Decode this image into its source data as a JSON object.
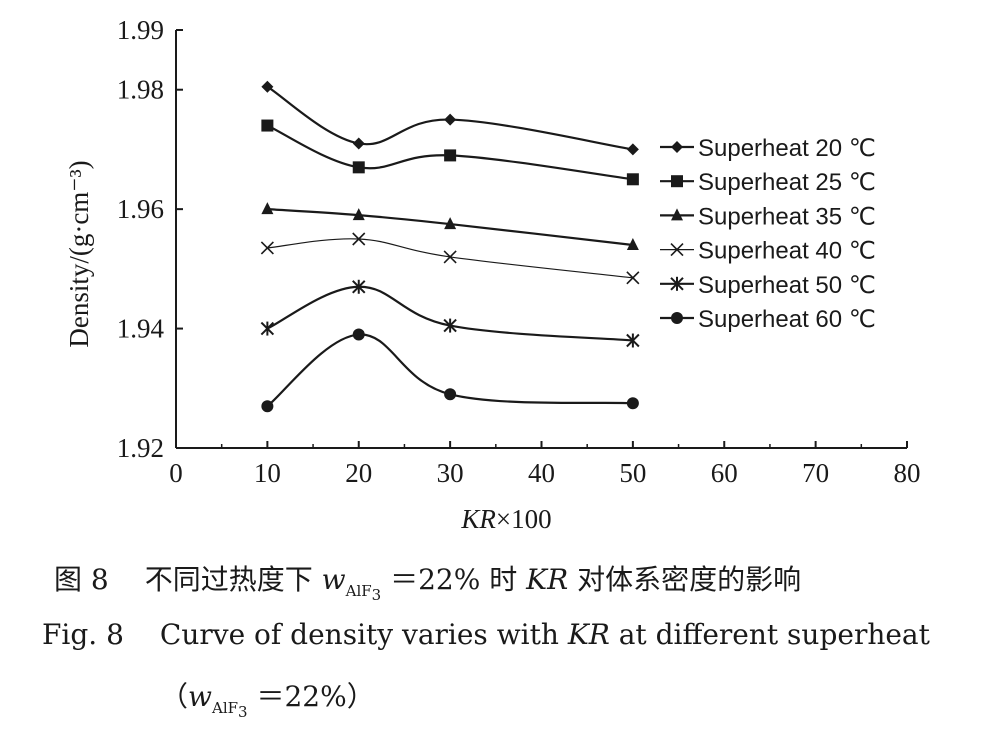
{
  "chart_data": {
    "type": "line",
    "xlabel": "KR×100",
    "ylabel": "Density/(g·cm⁻³)",
    "xlim": [
      0,
      80
    ],
    "ylim": [
      1.92,
      1.99
    ],
    "xticks": [
      "0",
      "10",
      "20",
      "30",
      "40",
      "50",
      "60",
      "70",
      "80"
    ],
    "yticks": [
      "1.92",
      "1.94",
      "1.96",
      "1.98",
      "1.99"
    ],
    "x": [
      10,
      20,
      30,
      50
    ],
    "legend_position": "right",
    "grid": false,
    "series": [
      {
        "name": "Superheat 20 ℃",
        "marker": "diamond",
        "values": [
          1.9805,
          1.971,
          1.975,
          1.97
        ]
      },
      {
        "name": "Superheat 25 ℃",
        "marker": "square",
        "values": [
          1.974,
          1.967,
          1.969,
          1.965
        ]
      },
      {
        "name": "Superheat 35 ℃",
        "marker": "triangle",
        "values": [
          1.96,
          1.959,
          1.9575,
          1.954
        ]
      },
      {
        "name": "Superheat 40 ℃",
        "marker": "x",
        "values": [
          1.9535,
          1.955,
          1.952,
          1.9485
        ]
      },
      {
        "name": "Superheat 50 ℃",
        "marker": "star",
        "values": [
          1.94,
          1.947,
          1.9405,
          1.938
        ]
      },
      {
        "name": "Superheat 60 ℃",
        "marker": "circle",
        "values": [
          1.927,
          1.939,
          1.929,
          1.9275
        ]
      }
    ]
  },
  "caption": {
    "cn_fig": "图 8",
    "cn_text_a": "不同过热度下",
    "cn_w": "w",
    "cn_sub": "AlF",
    "cn_sub3": "3",
    "cn_text_b": "＝22% 时",
    "cn_kr": "KR",
    "cn_text_c": "对体系密度的影响",
    "en_fig": "Fig. 8",
    "en_text_a": "Curve of density varies with",
    "en_kr": "KR",
    "en_text_b": "at different superheat",
    "en2_open": "（",
    "en2_w": "w",
    "en2_sub": "AlF",
    "en2_sub3": "3",
    "en2_eq": "＝22%",
    "en2_close": "）"
  }
}
